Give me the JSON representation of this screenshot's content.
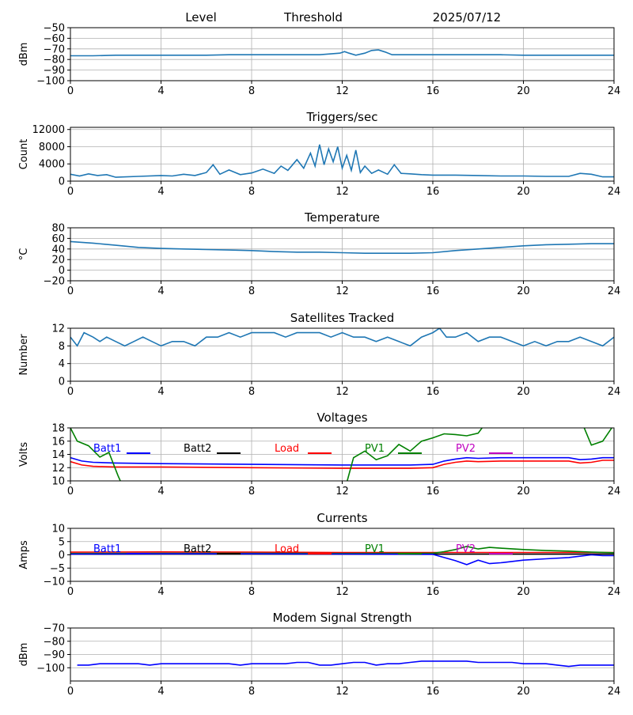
{
  "header": {
    "level_label": "Level",
    "threshold_label": "Threshold",
    "date": "2025/07/12"
  },
  "colors": {
    "default": "#1f77b4",
    "batt1": "#0000ff",
    "batt2": "#000000",
    "load": "#ff0000",
    "pv1": "#008000",
    "pv2": "#bf00bf",
    "grid": "#b0b0b0"
  },
  "chart_data": [
    {
      "type": "line",
      "title": "",
      "ylabel": "dBm",
      "xlim": [
        0,
        24
      ],
      "ylim": [
        -100,
        -50
      ],
      "yticks": [
        -50,
        -60,
        -70,
        -80,
        -90,
        -100
      ],
      "ytick_labels": [
        "−50",
        "−60",
        "−70",
        "−80",
        "−90",
        "−100"
      ],
      "xticks": [
        0,
        4,
        8,
        12,
        16,
        20,
        24
      ],
      "grid": true,
      "series": [
        {
          "color_key": "default",
          "x": [
            0,
            1,
            2,
            3,
            4,
            5,
            6,
            7,
            8,
            9,
            10,
            11,
            11.9,
            12.1,
            12.3,
            12.6,
            13,
            13.3,
            13.6,
            13.9,
            14.2,
            15,
            16,
            17,
            18,
            19,
            20,
            21,
            22,
            23,
            24
          ],
          "y": [
            -76.5,
            -76.5,
            -76,
            -76,
            -76,
            -76,
            -76,
            -75.5,
            -75.5,
            -75.5,
            -75.5,
            -75.5,
            -74,
            -72.5,
            -74,
            -76,
            -74,
            -71.5,
            -71,
            -73,
            -75.5,
            -75.5,
            -75.5,
            -75.5,
            -75.5,
            -75.5,
            -76,
            -76,
            -76,
            -76,
            -76
          ]
        }
      ]
    },
    {
      "type": "line",
      "title": "Triggers/sec",
      "ylabel": "Count",
      "xlim": [
        0,
        24
      ],
      "ylim": [
        0,
        12500
      ],
      "yticks": [
        0,
        4000,
        8000,
        12000
      ],
      "ytick_labels": [
        "0",
        "4000",
        "8000",
        "12000"
      ],
      "xticks": [
        0,
        4,
        8,
        12,
        16,
        20,
        24
      ],
      "grid": true,
      "series": [
        {
          "color_key": "default",
          "x": [
            0,
            0.4,
            0.8,
            1.2,
            1.6,
            2,
            3,
            4,
            4.5,
            5,
            5.5,
            6,
            6.3,
            6.6,
            7,
            7.5,
            8,
            8.5,
            9,
            9.3,
            9.6,
            10,
            10.3,
            10.6,
            10.8,
            11,
            11.2,
            11.4,
            11.6,
            11.8,
            12,
            12.2,
            12.4,
            12.6,
            12.8,
            13,
            13.3,
            13.6,
            14,
            14.3,
            14.6,
            15,
            15.5,
            16,
            17,
            18,
            19,
            20,
            21,
            22,
            22.5,
            23,
            23.5,
            24
          ],
          "y": [
            1600,
            1200,
            1700,
            1300,
            1500,
            900,
            1100,
            1300,
            1200,
            1600,
            1300,
            2000,
            3800,
            1600,
            2600,
            1500,
            1900,
            2800,
            1800,
            3500,
            2500,
            5000,
            3000,
            6500,
            3500,
            8500,
            3800,
            7500,
            4500,
            8000,
            3000,
            6000,
            2500,
            7200,
            2000,
            3500,
            1800,
            2600,
            1600,
            3800,
            1800,
            1700,
            1500,
            1400,
            1400,
            1300,
            1200,
            1200,
            1100,
            1100,
            1800,
            1600,
            1000,
            1000
          ]
        }
      ]
    },
    {
      "type": "line",
      "title": "Temperature",
      "ylabel": "°C",
      "xlim": [
        0,
        24
      ],
      "ylim": [
        -20,
        80
      ],
      "yticks": [
        -20,
        0,
        20,
        40,
        60,
        80
      ],
      "ytick_labels": [
        "−20",
        "0",
        "20",
        "40",
        "60",
        "80"
      ],
      "xticks": [
        0,
        4,
        8,
        12,
        16,
        20,
        24
      ],
      "grid": true,
      "series": [
        {
          "color_key": "default",
          "x": [
            0,
            1,
            2,
            3,
            4,
            5,
            6,
            7,
            8,
            9,
            10,
            11,
            12,
            13,
            14,
            15,
            16,
            17,
            18,
            19,
            20,
            21,
            22,
            23,
            24
          ],
          "y": [
            54,
            51,
            47,
            43,
            41,
            40,
            39,
            38,
            37,
            35,
            34,
            34,
            33,
            32,
            32,
            32,
            33,
            37,
            40,
            43,
            46,
            48,
            49,
            50,
            50
          ]
        }
      ]
    },
    {
      "type": "line",
      "title": "Satellites Tracked",
      "ylabel": "Number",
      "xlim": [
        0,
        24
      ],
      "ylim": [
        0,
        12
      ],
      "yticks": [
        0,
        4,
        8,
        12
      ],
      "ytick_labels": [
        "0",
        "4",
        "8",
        "12"
      ],
      "xticks": [
        0,
        4,
        8,
        12,
        16,
        20,
        24
      ],
      "grid": true,
      "series": [
        {
          "color_key": "default",
          "x": [
            0,
            0.3,
            0.6,
            1,
            1.3,
            1.6,
            2,
            2.4,
            2.8,
            3.2,
            3.6,
            4,
            4.5,
            5,
            5.5,
            6,
            6.5,
            7,
            7.5,
            8,
            8.5,
            9,
            9.5,
            10,
            10.5,
            11,
            11.5,
            12,
            12.5,
            13,
            13.5,
            14,
            14.5,
            15,
            15.5,
            16,
            16.3,
            16.6,
            17,
            17.5,
            18,
            18.5,
            19,
            19.5,
            20,
            20.5,
            21,
            21.5,
            22,
            22.5,
            23,
            23.5,
            24
          ],
          "y": [
            10,
            8,
            11,
            10,
            9,
            10,
            9,
            8,
            9,
            10,
            9,
            8,
            9,
            9,
            8,
            10,
            10,
            11,
            10,
            11,
            11,
            11,
            10,
            11,
            11,
            11,
            10,
            11,
            10,
            10,
            9,
            10,
            9,
            8,
            10,
            11,
            12,
            10,
            10,
            11,
            9,
            10,
            10,
            9,
            8,
            9,
            8,
            9,
            9,
            10,
            9,
            8,
            10
          ]
        }
      ]
    },
    {
      "type": "line",
      "title": "Voltages",
      "ylabel": "Volts",
      "xlim": [
        0,
        24
      ],
      "ylim": [
        10,
        18
      ],
      "yticks": [
        10,
        12,
        14,
        16,
        18
      ],
      "ytick_labels": [
        "10",
        "12",
        "14",
        "16",
        "18"
      ],
      "xticks": [
        0,
        4,
        8,
        12,
        16,
        20,
        24
      ],
      "grid": true,
      "legend_position": "upper-inside",
      "legend": [
        "Batt1",
        "Batt2",
        "Load",
        "PV1",
        "PV2"
      ],
      "series": [
        {
          "name": "Batt1",
          "color_key": "batt1",
          "x": [
            0,
            0.5,
            1,
            2,
            4,
            8,
            12,
            15,
            16,
            16.5,
            17,
            17.5,
            18,
            19,
            20,
            22,
            22.5,
            23,
            23.5,
            24
          ],
          "y": [
            13.5,
            13,
            12.8,
            12.7,
            12.6,
            12.5,
            12.4,
            12.4,
            12.5,
            13,
            13.3,
            13.5,
            13.4,
            13.5,
            13.5,
            13.5,
            13.2,
            13.3,
            13.5,
            13.5
          ]
        },
        {
          "name": "Load",
          "color_key": "load",
          "x": [
            0,
            0.5,
            1,
            2,
            4,
            8,
            12,
            15,
            16,
            16.5,
            17,
            17.5,
            18,
            19,
            20,
            22,
            22.5,
            23,
            23.5,
            24
          ],
          "y": [
            12.9,
            12.4,
            12.2,
            12.1,
            12.1,
            12.0,
            11.9,
            11.9,
            12.0,
            12.5,
            12.8,
            13.0,
            12.9,
            13.0,
            13.0,
            13.0,
            12.7,
            12.8,
            13.1,
            13.1
          ]
        },
        {
          "name": "PV1",
          "color_key": "pv1",
          "x": [
            0,
            0.3,
            0.8,
            1.3,
            1.7,
            2.1,
            2.4,
            12.1,
            12.5,
            13,
            13.5,
            14,
            14.5,
            15,
            15.5,
            16,
            16.5,
            17,
            17.5,
            18,
            18.5,
            22.5,
            23,
            23.5,
            24
          ],
          "y": [
            18,
            16,
            15.3,
            13.6,
            14.3,
            10.8,
            8.5,
            8.5,
            13.5,
            14.5,
            13.2,
            13.8,
            15.5,
            14.5,
            16,
            16.5,
            17.1,
            17.0,
            16.8,
            17.2,
            19.5,
            19.5,
            15.4,
            16.0,
            18.5
          ]
        }
      ]
    },
    {
      "type": "line",
      "title": "Currents",
      "ylabel": "Amps",
      "xlim": [
        0,
        24
      ],
      "ylim": [
        -10,
        10
      ],
      "yticks": [
        -10,
        -5,
        0,
        5,
        10
      ],
      "ytick_labels": [
        "−10",
        "−5",
        "0",
        "5",
        "10"
      ],
      "xticks": [
        0,
        4,
        8,
        12,
        16,
        20,
        24
      ],
      "grid": true,
      "legend_position": "upper-inside",
      "legend": [
        "Batt1",
        "Batt2",
        "Load",
        "PV1",
        "PV2"
      ],
      "series": [
        {
          "name": "Load",
          "color_key": "load",
          "x": [
            0,
            4,
            8,
            12,
            16,
            20,
            24
          ],
          "y": [
            1.0,
            1.1,
            1.0,
            0.9,
            0.9,
            0.9,
            0.9
          ]
        },
        {
          "name": "Batt2",
          "color_key": "batt2",
          "x": [
            0,
            4,
            8,
            12,
            16,
            20,
            24
          ],
          "y": [
            0.3,
            0.3,
            0.3,
            0.3,
            0.3,
            0.3,
            0.3
          ]
        },
        {
          "name": "PV1",
          "color_key": "pv1",
          "x": [
            0,
            4,
            8,
            12,
            16,
            16.5,
            17,
            17.5,
            18,
            18.5,
            19,
            20,
            21,
            22,
            23,
            24
          ],
          "y": [
            0.5,
            0.6,
            0.6,
            0.5,
            0.6,
            1.2,
            2.0,
            3.2,
            2.2,
            2.8,
            2.5,
            2.0,
            1.6,
            1.4,
            1.0,
            0.8
          ]
        },
        {
          "name": "Batt1",
          "color_key": "batt1",
          "x": [
            0,
            4,
            8,
            12,
            16,
            16.5,
            17,
            17.5,
            18,
            18.5,
            19,
            20,
            21,
            22,
            22.5,
            23,
            23.5,
            24
          ],
          "y": [
            0.3,
            0.4,
            0.4,
            0.3,
            0.2,
            -1.0,
            -2.2,
            -3.7,
            -2.0,
            -3.3,
            -3.0,
            -2.0,
            -1.5,
            -1.0,
            -0.5,
            0.0,
            -0.3,
            -0.3
          ]
        }
      ]
    },
    {
      "type": "line",
      "title": "Modem Signal Strength",
      "ylabel": "dBm",
      "xlim": [
        0,
        24
      ],
      "ylim": [
        -110,
        -70
      ],
      "yticks": [
        -70,
        -80,
        -90,
        -100
      ],
      "ytick_labels": [
        "−70",
        "−80",
        "−90",
        "−100"
      ],
      "xticks": [
        0,
        4,
        8,
        12,
        16,
        20,
        24
      ],
      "grid": true,
      "series": [
        {
          "color_key": "batt1",
          "x": [
            0.3,
            0.8,
            1.3,
            2,
            3,
            3.5,
            4,
            5,
            6,
            6.5,
            7,
            7.5,
            8,
            9,
            9.5,
            10,
            10.5,
            11,
            11.5,
            12,
            12.5,
            13,
            13.5,
            14,
            14.5,
            15,
            15.5,
            16,
            17,
            17.5,
            18,
            19,
            19.5,
            20,
            21,
            21.5,
            22,
            22.5,
            23,
            23.5,
            24
          ],
          "y": [
            -98,
            -98,
            -97,
            -97,
            -97,
            -98,
            -97,
            -97,
            -97,
            -97,
            -97,
            -98,
            -97,
            -97,
            -97,
            -96,
            -96,
            -98,
            -98,
            -97,
            -96,
            -96,
            -98,
            -97,
            -97,
            -96,
            -95,
            -95,
            -95,
            -95,
            -96,
            -96,
            -96,
            -97,
            -97,
            -98,
            -99,
            -98,
            -98,
            -98,
            -98
          ]
        }
      ]
    }
  ]
}
